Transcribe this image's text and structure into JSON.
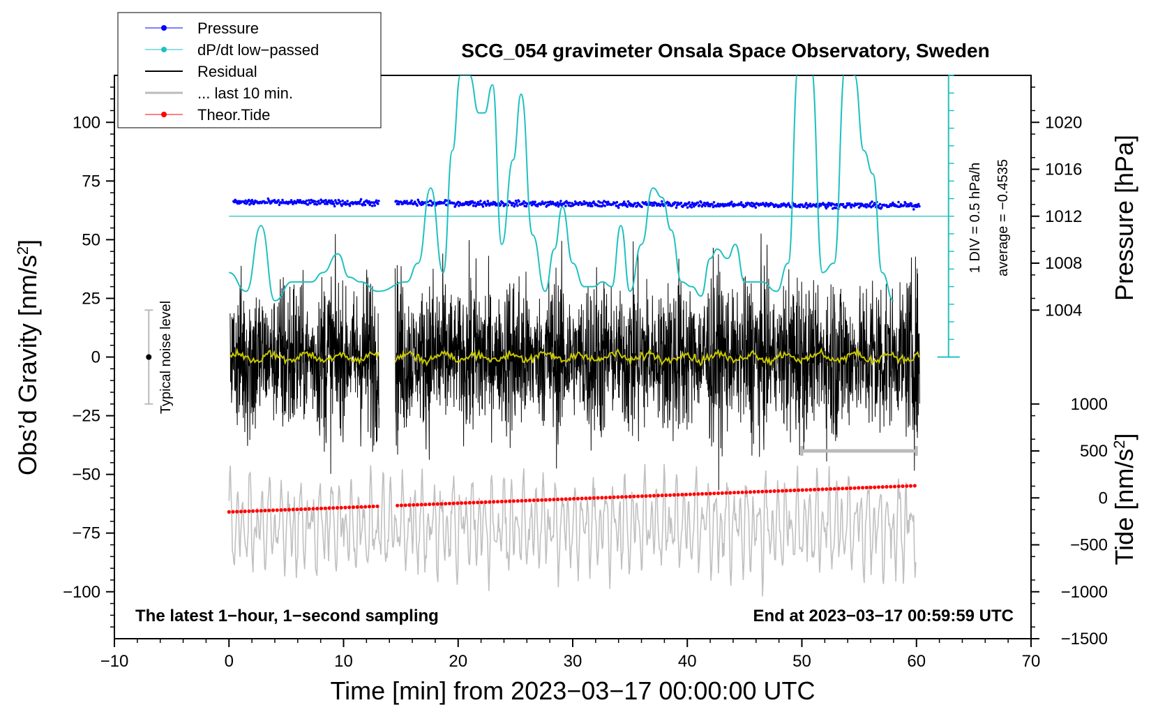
{
  "chart_data": {
    "type": "line",
    "title": "SCG_054 gravimeter Onsala Space Observatory, Sweden",
    "xlabel": "Time [min] from 2023−03−17 00:00:00 UTC",
    "ylabel_left": "Obs’d Gravity [nm/s",
    "ylabel_left_sup": "2",
    "ylabel_left_close": "]",
    "ylabel_right_pressure": "Pressure [hPa]",
    "ylabel_right_tide": "Tide [nm/s",
    "ylabel_right_tide_sup": "2",
    "ylabel_right_tide_close": "]",
    "xlim": [
      -10,
      70
    ],
    "ylim_gravity": [
      -120,
      120
    ],
    "x_ticks": [
      {
        "value": -10,
        "label": "−10"
      },
      {
        "value": 0,
        "label": "0"
      },
      {
        "value": 10,
        "label": "10"
      },
      {
        "value": 20,
        "label": "20"
      },
      {
        "value": 30,
        "label": "30"
      },
      {
        "value": 40,
        "label": "40"
      },
      {
        "value": 50,
        "label": "50"
      },
      {
        "value": 60,
        "label": "60"
      },
      {
        "value": 70,
        "label": "70"
      }
    ],
    "gravity_ticks": [
      {
        "value": 100,
        "label": "100"
      },
      {
        "value": 75,
        "label": "75"
      },
      {
        "value": 50,
        "label": "50"
      },
      {
        "value": 25,
        "label": "25"
      },
      {
        "value": 0,
        "label": "0"
      },
      {
        "value": -25,
        "label": "−25"
      },
      {
        "value": -50,
        "label": "−50"
      },
      {
        "value": -75,
        "label": "−75"
      },
      {
        "value": -100,
        "label": "−100"
      }
    ],
    "pressure_ticks": [
      {
        "gravity_equiv": 100,
        "label": "1020"
      },
      {
        "gravity_equiv": 80,
        "label": "1016"
      },
      {
        "gravity_equiv": 60,
        "label": "1012"
      },
      {
        "gravity_equiv": 40,
        "label": "1008"
      },
      {
        "gravity_equiv": 20,
        "label": "1004"
      }
    ],
    "tide_ticks": [
      {
        "gravity_equiv": -20,
        "label": "1000"
      },
      {
        "gravity_equiv": -40,
        "label": "500"
      },
      {
        "gravity_equiv": -60,
        "label": "0"
      },
      {
        "gravity_equiv": -80,
        "label": "−500"
      },
      {
        "gravity_equiv": -100,
        "label": "−1000"
      },
      {
        "gravity_equiv": -120,
        "label": "−1500"
      }
    ],
    "series": [
      {
        "name": "Pressure",
        "color": "#0000ff",
        "style": "dots",
        "level_hPa_start": 1013.2,
        "level_hPa_end": 1012.9,
        "gaps_min": [
          [
            13.2,
            14.5
          ]
        ]
      },
      {
        "name": "dP/dt low−passed",
        "color": "#20c0c0",
        "style": "line",
        "x": [
          0,
          1.5,
          2.8,
          4,
          5.5,
          7.2,
          8.2,
          9.5,
          10.5,
          11.5,
          13,
          15.5,
          16.5,
          17.6,
          18.7,
          19.5,
          20.2,
          21,
          21.8,
          22.3,
          23,
          23.8,
          24.8,
          25.5,
          26.5,
          27.6,
          28.4,
          29.1,
          30,
          31,
          31.8,
          32.6,
          33.4,
          34.2,
          35,
          36,
          37,
          37.8,
          38.6,
          39.5,
          40.4,
          41.2,
          42,
          42.6,
          43.5,
          44.2,
          45,
          46.5,
          47.8,
          48.8,
          49.7,
          50.8,
          51.8,
          52.8,
          53.8,
          54.6,
          55.4,
          56.2,
          57,
          58
        ],
        "y": [
          0.4,
          0.2,
          0.9,
          0.1,
          0.3,
          0.3,
          0.4,
          0.6,
          0.35,
          0.3,
          0.2,
          0.3,
          0.5,
          1.3,
          0.4,
          1.7,
          2.5,
          2.5,
          2.1,
          2.1,
          2.4,
          0.7,
          1.6,
          2.3,
          0.8,
          0.2,
          0.65,
          1.1,
          0.5,
          0.25,
          0.25,
          0.3,
          0.25,
          0.9,
          0.2,
          0.7,
          1.3,
          1.2,
          0.85,
          0.3,
          0.25,
          0.15,
          0.55,
          0.65,
          0.55,
          0.7,
          0.3,
          0.3,
          0.2,
          0.5,
          2.6,
          2.6,
          0.4,
          0.5,
          2.6,
          2.5,
          1.7,
          1.45,
          0.4,
          0.1
        ]
      },
      {
        "name": "Residual",
        "color": "#000000",
        "style": "line",
        "typical_amplitude": 35,
        "gaps_min": [
          [
            13.1,
            14.5
          ]
        ]
      },
      {
        "name": "... last 10 min.",
        "color": "#bbbbbb",
        "style": "line",
        "x_range": [
          50,
          60
        ],
        "value": -40
      },
      {
        "name": "Theor.Tide",
        "color": "#ff0000",
        "style": "dots",
        "x_range": [
          0,
          60
        ],
        "tide_start": -150,
        "tide_end": 130
      }
    ],
    "pressure_baseline": {
      "label": "average = −0.4535",
      "gravity_equiv": 60
    },
    "dpdt_scale_label": "1 DIV = 0.5 hPa/h",
    "dpdt_scale_divs": 16,
    "noise_bar": {
      "label": "Typical noise level",
      "x": -7,
      "center": 0,
      "half_range": 20
    },
    "note_left": "The latest 1−hour, 1−second sampling",
    "note_right": "End at 2023−03−17 00:59:59 UTC",
    "legend_position": "top-left"
  },
  "colors": {
    "pressure": "#0000ff",
    "dpdt": "#20c0c0",
    "residual": "#000000",
    "smooth": "#c8c800",
    "last10": "#bbbbbb",
    "tide": "#ff0000",
    "gray_signal": "#c0c0c0"
  }
}
